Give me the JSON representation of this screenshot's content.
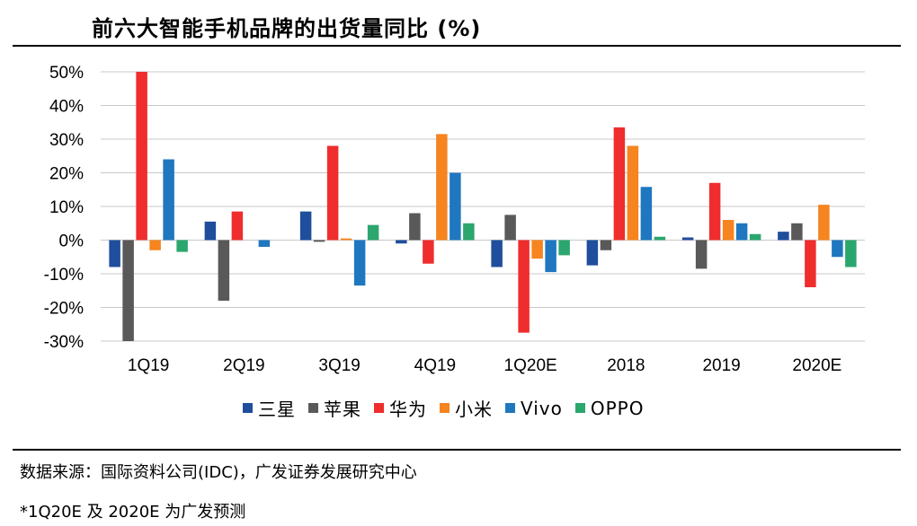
{
  "page": {
    "title": "前六大智能手机品牌的出货量同比 (%)",
    "source": "数据来源：国际资料公司(IDC)，广发证券发展研究中心",
    "note": "*1Q20E 及 2020E 为广发预测"
  },
  "chart_data": {
    "type": "bar",
    "title": "前六大智能手机品牌的出货量同比 (%)",
    "xlabel": "",
    "ylabel": "",
    "ylim": [
      -30,
      50
    ],
    "yticks": [
      -30,
      -20,
      -10,
      0,
      10,
      20,
      30,
      40,
      50
    ],
    "ytick_labels": [
      "-30%",
      "-20%",
      "-10%",
      "0%",
      "10%",
      "20%",
      "30%",
      "40%",
      "50%"
    ],
    "grid": true,
    "legend_position": "bottom",
    "categories": [
      "1Q19",
      "2Q19",
      "3Q19",
      "4Q19",
      "1Q20E",
      "2018",
      "2019",
      "2020E"
    ],
    "series": [
      {
        "name": "三星",
        "color": "#1F4E9C",
        "values": [
          -8,
          5.5,
          8.5,
          -1,
          -8,
          -7.5,
          0.8,
          2.5
        ]
      },
      {
        "name": "苹果",
        "color": "#595959",
        "values": [
          -30,
          -18,
          -0.5,
          8,
          7.5,
          -3,
          -8.5,
          5
        ]
      },
      {
        "name": "华为",
        "color": "#EF2D2D",
        "values": [
          50,
          8.5,
          28,
          -7,
          -27.5,
          33.5,
          17,
          -14
        ]
      },
      {
        "name": "小米",
        "color": "#F6841F",
        "values": [
          -3,
          null,
          0.5,
          31.5,
          -5.5,
          28,
          6,
          10.5
        ]
      },
      {
        "name": "Vivo",
        "color": "#1F77C0",
        "values": [
          24,
          -2,
          -13.5,
          20,
          -9.5,
          15.8,
          5,
          -5
        ]
      },
      {
        "name": "OPPO",
        "color": "#2BA66E",
        "values": [
          -3.5,
          null,
          4.5,
          5,
          -4.5,
          1,
          1.8,
          -8
        ]
      }
    ]
  }
}
